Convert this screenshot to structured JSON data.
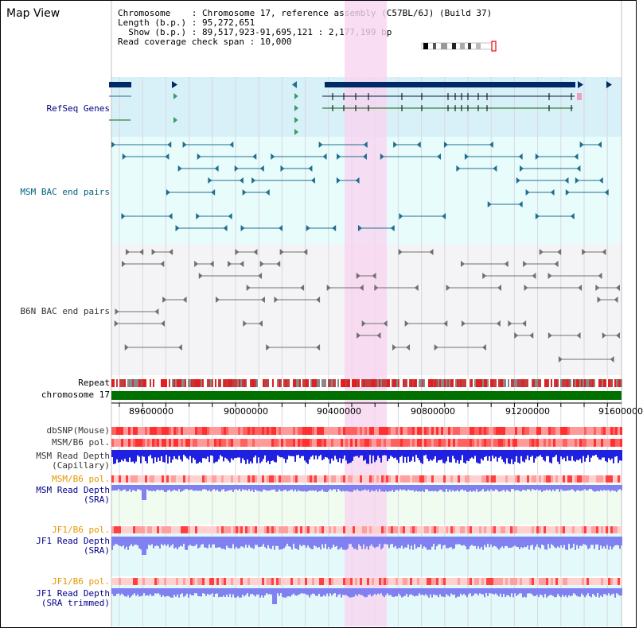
{
  "title": "Map View",
  "info": {
    "line1": "Chromosome    : Chromosome 17, reference assembly (C57BL/6J) (Build 37)",
    "line2": "Length (b.p.) : 95,272,651",
    "line3": "  Show (b.p.) : 89,517,923-91,695,121 : 2,177,199 bp",
    "line4": "Read coverage check span : 10,000"
  },
  "tracks": {
    "refseq": "RefSeq Genes",
    "msm_bac": "MSM BAC end pairs",
    "b6n_bac": "B6N BAC end pairs",
    "repeat": "Repeat",
    "chromosome": "chromosome 17",
    "dbsnp": "dbSNP(Mouse)",
    "msm_b6_pol": "MSM/B6 pol.",
    "msm_depth_cap_1": "MSM Read Depth",
    "msm_depth_cap_2": "(Capillary)",
    "msm_b6_pol2": "MSM/B6 pol.",
    "msm_depth_sra_1": "MSM Read Depth",
    "msm_depth_sra_2": "(SRA)",
    "jf1_b6_pol": "JF1/B6 pol.",
    "jf1_depth_sra_1": "JF1 Read Depth",
    "jf1_depth_sra_2": "(SRA)",
    "jf1_b6_pol2": "JF1/B6 pol.",
    "jf1_depth_trim_1": "JF1 Read Depth",
    "jf1_depth_trim_2": "(SRA trimmed)"
  },
  "axis_ticks": [
    "89600000",
    "90000000",
    "90400000",
    "90800000",
    "91200000",
    "91600000"
  ],
  "colors": {
    "refseq_bg": "#d8f0f8",
    "bac_bg": "#e8fcfc",
    "b6n_bg": "#f4f4f6",
    "highlight": "#f8d4f0",
    "gene": "#002a66",
    "msm_pair": "#1f6f8f",
    "b6n_pair": "#707070",
    "chrom": "#007000",
    "depth_dark": "#2020e0",
    "depth_light": "#8080f0",
    "pol_red": "#ff4040"
  },
  "icons": {
    "chrom_ideogram": "chromosome-ideogram-icon"
  }
}
